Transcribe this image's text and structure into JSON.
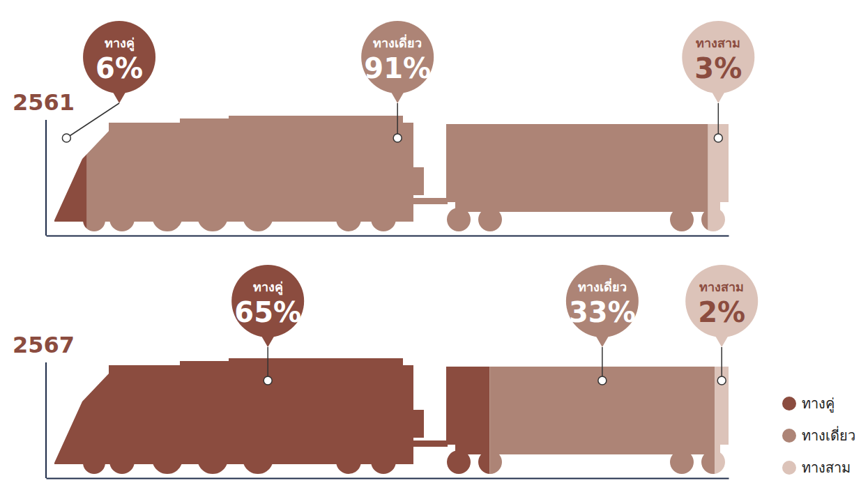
{
  "chart_data": {
    "type": "bar",
    "orientation": "horizontal",
    "stacked": true,
    "categories": [
      "2561",
      "2567"
    ],
    "series": [
      {
        "name": "ทางคู่",
        "color": "#8b4c3f",
        "values": [
          6,
          65
        ],
        "value_labels": [
          "6%",
          "65%"
        ]
      },
      {
        "name": "ทางเดี่ยว",
        "color": "#ad8476",
        "values": [
          91,
          33
        ],
        "value_labels": [
          "91%",
          "33%"
        ]
      },
      {
        "name": "ทางสาม",
        "color": "#dcc3b9",
        "values": [
          3,
          2
        ],
        "value_labels": [
          "3%",
          "2%"
        ]
      }
    ],
    "xlim": [
      0,
      100
    ],
    "xticks": [],
    "tick_labels": false,
    "data_labels": true,
    "legend": "bottom-right",
    "grid": false
  }
}
